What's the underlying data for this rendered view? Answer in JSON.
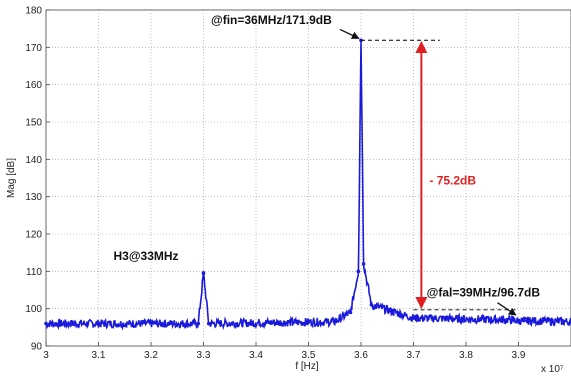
{
  "chart_data": {
    "type": "line",
    "title": "",
    "xlabel": "f [Hz]",
    "ylabel": "Mag [dB]",
    "x_exponent_label": "x 10⁷",
    "xlim": [
      3.0,
      4.0
    ],
    "ylim": [
      90,
      180
    ],
    "x_ticks": [
      "3",
      "3.1",
      "3.2",
      "3.3",
      "3.4",
      "3.5",
      "3.6",
      "3.7",
      "3.8",
      "3.9"
    ],
    "y_ticks": [
      "90",
      "100",
      "110",
      "120",
      "130",
      "140",
      "150",
      "160",
      "170",
      "180"
    ],
    "grid": true,
    "colors": {
      "series": "#1a1adc",
      "annotation": "#e02020",
      "reference": "#000000"
    },
    "series": [
      {
        "points": [
          [
            3.0,
            96
          ],
          [
            3.29,
            96
          ],
          [
            3.3,
            109.5
          ],
          [
            3.31,
            96
          ],
          [
            3.55,
            96.5
          ],
          [
            3.58,
            99
          ],
          [
            3.595,
            110
          ],
          [
            3.6,
            171.9
          ],
          [
            3.605,
            112
          ],
          [
            3.62,
            101
          ],
          [
            3.7,
            97.5
          ],
          [
            3.89,
            97
          ],
          [
            3.9,
            96.7
          ],
          [
            3.91,
            96.8
          ],
          [
            4.0,
            96.5
          ]
        ]
      }
    ],
    "annotations": [
      {
        "text": "@fin=36MHz/171.9dB",
        "x": 3.6,
        "y": 171.9
      },
      {
        "text": "H3@33MHz",
        "x": 3.3,
        "y": 109.5
      },
      {
        "text": "@fal=39MHz/96.7dB",
        "x": 3.9,
        "y": 96.7
      },
      {
        "text": "- 75.2dB",
        "from": 171.9,
        "to": 96.7
      }
    ]
  }
}
